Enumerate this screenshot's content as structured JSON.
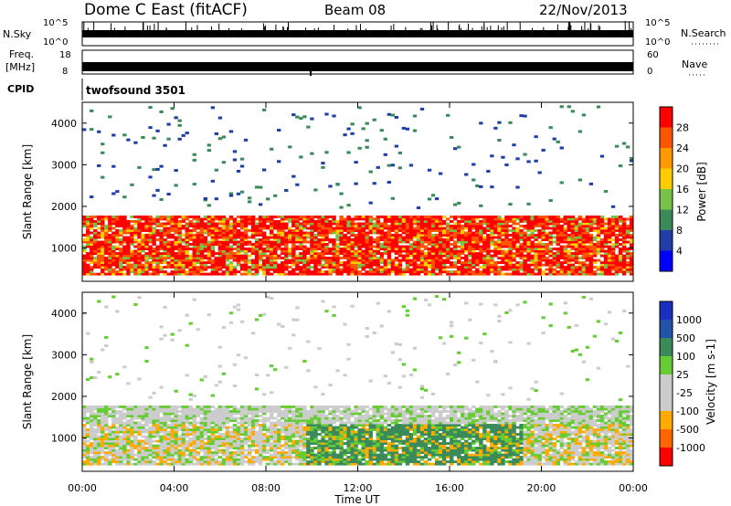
{
  "header": {
    "station": "Dome C East (fitACF)",
    "beam": "Beam 08",
    "date": "22/Nov/2013"
  },
  "status_panels": {
    "sky": {
      "left_label": "N.Sky",
      "right_label": "N.Search",
      "left_ticks": [
        "10^5",
        "10^0"
      ],
      "right_ticks": [
        "10^5",
        "10^0"
      ]
    },
    "freq": {
      "left_label_1": "Freq.",
      "left_label_2": "[MHz]",
      "right_label": "Nave",
      "left_ticks": [
        "18",
        "8"
      ],
      "right_ticks": [
        "60",
        "0"
      ]
    },
    "cpid": {
      "label": "CPID",
      "value": "twofsound 3501"
    }
  },
  "x_axis": {
    "label": "Time UT",
    "ticks": [
      "00:00",
      "04:00",
      "08:00",
      "12:00",
      "16:00",
      "20:00",
      "00:00"
    ]
  },
  "colors": {
    "power_scale": [
      "#0000ff",
      "#1f3fa6",
      "#3a8a5a",
      "#79c24a",
      "#ffcc00",
      "#ff9900",
      "#ff5500",
      "#ff0000"
    ],
    "velocity_scale": [
      "#ff0000",
      "#ff6600",
      "#ffaa00",
      "#cccccc",
      "#cccccc",
      "#66cc33",
      "#3a8a5a",
      "#2255aa",
      "#1a2fbf"
    ]
  },
  "chart_data": [
    {
      "type": "heatmap",
      "title": "",
      "xlabel": "",
      "ylabel": "Slant Range [km]",
      "xlim_hours": [
        0,
        24
      ],
      "ylim": [
        200,
        4500
      ],
      "yticks": [
        "1000",
        "2000",
        "3000",
        "4000"
      ],
      "colorbar": {
        "label": "Power [dB]",
        "ticks": [
          "4",
          "8",
          "12",
          "16",
          "20",
          "24",
          "28"
        ],
        "range": [
          0,
          32
        ]
      },
      "grid": false
    },
    {
      "type": "heatmap",
      "title": "",
      "xlabel": "Time UT",
      "ylabel": "Slant Range [km]",
      "xlim_hours": [
        0,
        24
      ],
      "ylim": [
        200,
        4500
      ],
      "yticks": [
        "1000",
        "2000",
        "3000",
        "4000"
      ],
      "colorbar": {
        "label": "Velocity [m s-1]",
        "ticks": [
          "1000",
          "500",
          "100",
          "25",
          "-25",
          "-100",
          "-500",
          "-1000"
        ]
      },
      "grid": false
    }
  ]
}
